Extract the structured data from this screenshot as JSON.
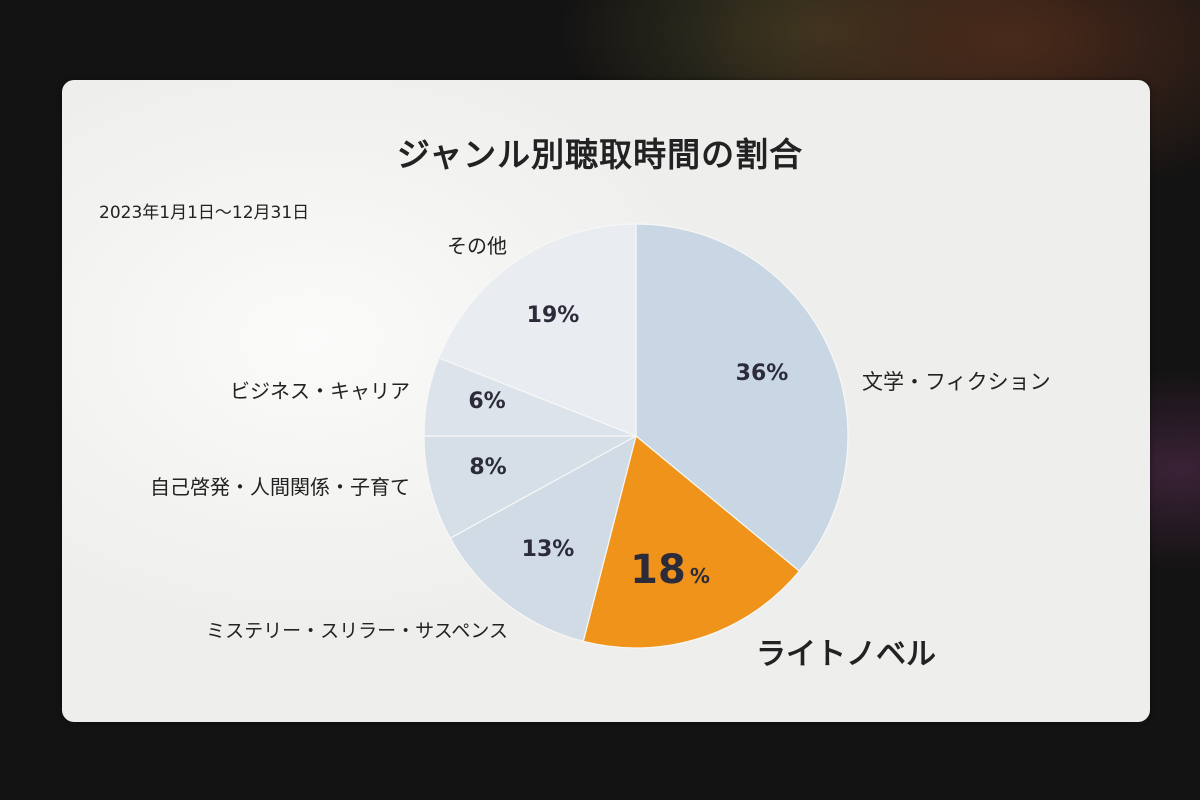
{
  "slide": {
    "title": "ジャンル別聴取時間の割合",
    "period": "2023年1月1日〜12月31日"
  },
  "chart_data": {
    "type": "pie",
    "title": "ジャンル別聴取時間の割合",
    "subtitle": "2023年1月1日〜12月31日",
    "start_angle_deg": 0,
    "direction": "clockwise",
    "slices": [
      {
        "label": "文学・フィクション",
        "value": 36,
        "value_text": "36%",
        "color": "#c9d6e3",
        "highlight": false
      },
      {
        "label": "ライトノベル",
        "value": 18,
        "value_text": "18",
        "unit": "%",
        "color": "#f0931a",
        "highlight": true
      },
      {
        "label": "ミステリー・スリラー・サスペンス",
        "value": 13,
        "value_text": "13%",
        "color": "#d0dbe5",
        "highlight": false
      },
      {
        "label": "自己啓発・人間関係・子育て",
        "value": 8,
        "value_text": "8%",
        "color": "#d6dfe8",
        "highlight": false
      },
      {
        "label": "ビジネス・キャリア",
        "value": 6,
        "value_text": "6%",
        "color": "#dce3ea",
        "highlight": false
      },
      {
        "label": "その他",
        "value": 19,
        "value_text": "19%",
        "color": "#e9ecf1",
        "highlight": false
      }
    ]
  }
}
